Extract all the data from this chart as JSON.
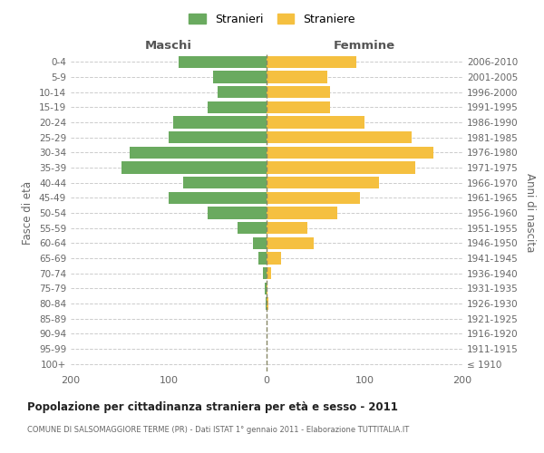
{
  "age_groups": [
    "100+",
    "95-99",
    "90-94",
    "85-89",
    "80-84",
    "75-79",
    "70-74",
    "65-69",
    "60-64",
    "55-59",
    "50-54",
    "45-49",
    "40-44",
    "35-39",
    "30-34",
    "25-29",
    "20-24",
    "15-19",
    "10-14",
    "5-9",
    "0-4"
  ],
  "birth_years": [
    "≤ 1910",
    "1911-1915",
    "1916-1920",
    "1921-1925",
    "1926-1930",
    "1931-1935",
    "1936-1940",
    "1941-1945",
    "1946-1950",
    "1951-1955",
    "1956-1960",
    "1961-1965",
    "1966-1970",
    "1971-1975",
    "1976-1980",
    "1981-1985",
    "1986-1990",
    "1991-1995",
    "1996-2000",
    "2001-2005",
    "2006-2010"
  ],
  "maschi": [
    0,
    0,
    0,
    0,
    1,
    2,
    4,
    8,
    14,
    30,
    60,
    100,
    85,
    148,
    140,
    100,
    95,
    60,
    50,
    55,
    90
  ],
  "femmine": [
    0,
    0,
    0,
    0,
    2,
    1,
    5,
    15,
    48,
    42,
    72,
    95,
    115,
    152,
    170,
    148,
    100,
    65,
    65,
    62,
    92
  ],
  "maschi_color": "#6aaa5f",
  "femmine_color": "#f5c040",
  "background_color": "#ffffff",
  "grid_color": "#cccccc",
  "title": "Popolazione per cittadinanza straniera per età e sesso - 2011",
  "subtitle": "COMUNE DI SALSOMAGGIORE TERME (PR) - Dati ISTAT 1° gennaio 2011 - Elaborazione TUTTITALIA.IT",
  "left_label": "Maschi",
  "right_label": "Femmine",
  "ylabel": "Fasce di età",
  "ylabel_right": "Anni di nascita",
  "legend_maschi": "Stranieri",
  "legend_femmine": "Straniere",
  "xlim": 200
}
